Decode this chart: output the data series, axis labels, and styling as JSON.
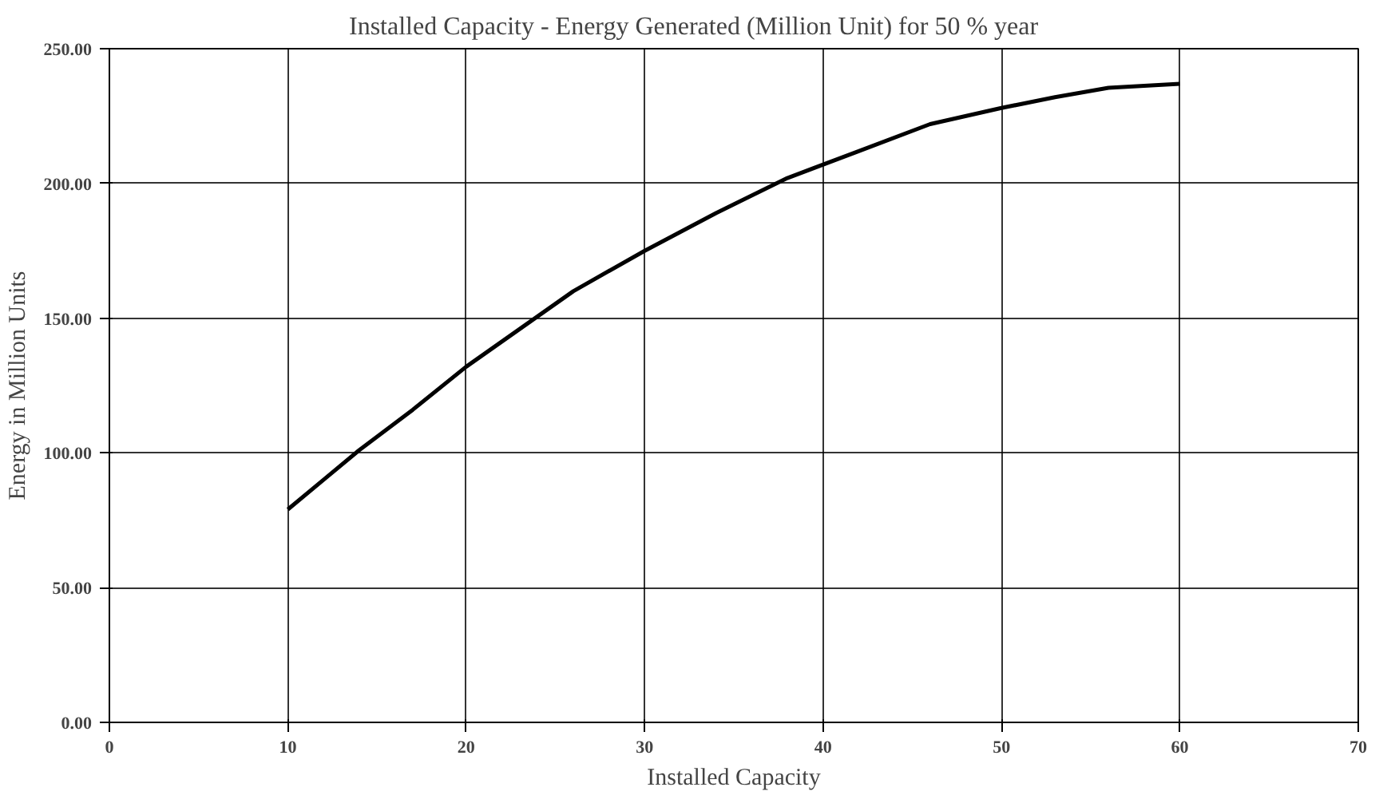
{
  "chart_data": {
    "type": "line",
    "title": "Installed Capacity - Energy Generated (Million Unit) for 50 % year",
    "xlabel": "Installed Capacity",
    "ylabel": "Energy in Million Units",
    "x": [
      10,
      12,
      14,
      17,
      20,
      23,
      26,
      30,
      34,
      38,
      42,
      46,
      50,
      53,
      56,
      60
    ],
    "series": [
      {
        "color": "#000000",
        "values": [
          79,
          90,
          101,
          116,
          132,
          146,
          160,
          175,
          189,
          202,
          212,
          222,
          228,
          232,
          235.5,
          237
        ]
      }
    ],
    "xlim": [
      0,
      70
    ],
    "xticks": [
      0,
      10,
      20,
      30,
      40,
      50,
      60,
      70
    ],
    "ylim": [
      0,
      250
    ],
    "yticks": [
      {
        "value": 0,
        "label": "0.00"
      },
      {
        "value": 50,
        "label": "50.00"
      },
      {
        "value": 100,
        "label": "100.00"
      },
      {
        "value": 150,
        "label": "150.00"
      },
      {
        "value": 200,
        "label": "200.00"
      },
      {
        "value": 250,
        "label": "250.00"
      }
    ],
    "grid": true,
    "marker": "none",
    "line_style": "solid"
  }
}
